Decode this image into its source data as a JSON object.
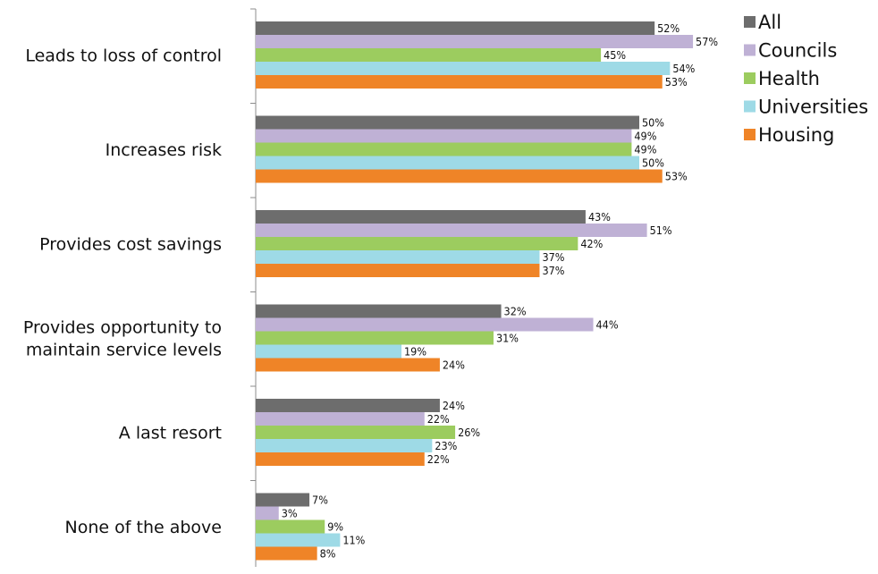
{
  "chart_data": {
    "type": "bar",
    "orientation": "horizontal",
    "categories": [
      [
        "Leads to loss of control"
      ],
      [
        "Increases risk"
      ],
      [
        "Provides cost savings"
      ],
      [
        "Provides opportunity to",
        "maintain service levels"
      ],
      [
        "A last resort"
      ],
      [
        "None of the above"
      ]
    ],
    "series": [
      {
        "name": "All",
        "color": "#6d6d6d",
        "values": [
          52,
          50,
          43,
          32,
          24,
          7
        ]
      },
      {
        "name": "Councils",
        "color": "#bfb1d5",
        "values": [
          57,
          49,
          51,
          44,
          22,
          3
        ]
      },
      {
        "name": "Health",
        "color": "#9ccc5f",
        "values": [
          45,
          49,
          42,
          31,
          26,
          9
        ]
      },
      {
        "name": "Universities",
        "color": "#9edae6",
        "values": [
          54,
          50,
          37,
          19,
          23,
          11
        ]
      },
      {
        "name": "Housing",
        "color": "#ef8427",
        "values": [
          53,
          53,
          37,
          24,
          22,
          8
        ]
      }
    ],
    "value_suffix": "%",
    "xlim": [
      0,
      100
    ],
    "legend_position": "top-right",
    "grid": false,
    "title": "",
    "xlabel": "",
    "ylabel": ""
  }
}
